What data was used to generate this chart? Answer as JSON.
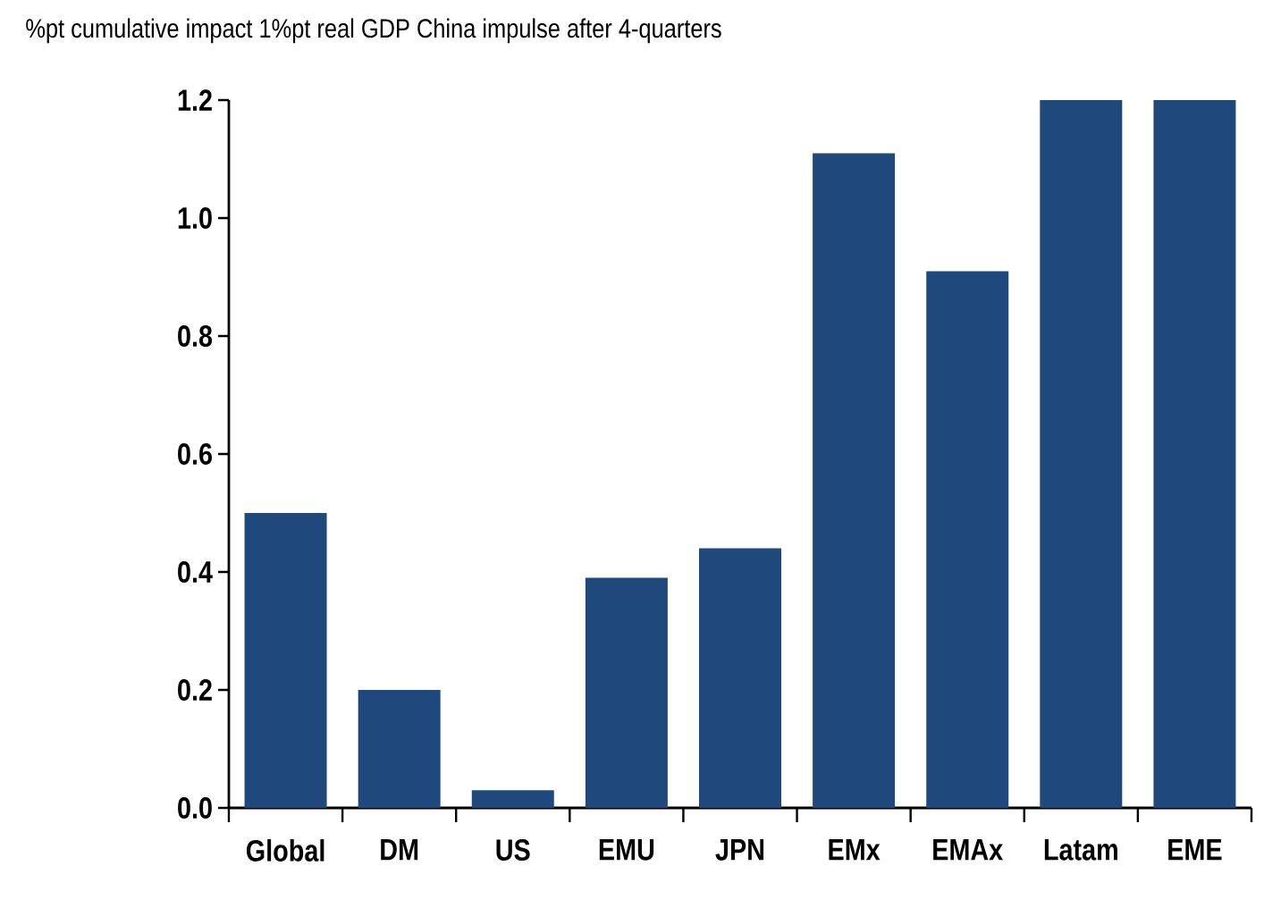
{
  "chart_data": {
    "type": "bar",
    "title": "%pt cumulative impact 1%pt real GDP China impulse after 4-quarters",
    "categories": [
      "Global",
      "DM",
      "US",
      "EMU",
      "JPN",
      "EMx",
      "EMAx",
      "Latam",
      "EME"
    ],
    "values": [
      0.5,
      0.2,
      0.03,
      0.39,
      0.44,
      1.11,
      0.91,
      1.2,
      1.2
    ],
    "color": "#1f497d",
    "ylim": [
      0,
      1.2
    ],
    "yticks": [
      {
        "value": 0,
        "label": "0.0"
      },
      {
        "value": 0.2,
        "label": "0.2"
      },
      {
        "value": 0.4,
        "label": "0.4"
      },
      {
        "value": 0.6,
        "label": "0.6"
      },
      {
        "value": 0.8,
        "label": "0.8"
      },
      {
        "value": 1.0,
        "label": "1.0"
      },
      {
        "value": 1.2,
        "label": "1.2"
      }
    ],
    "grid": false
  }
}
